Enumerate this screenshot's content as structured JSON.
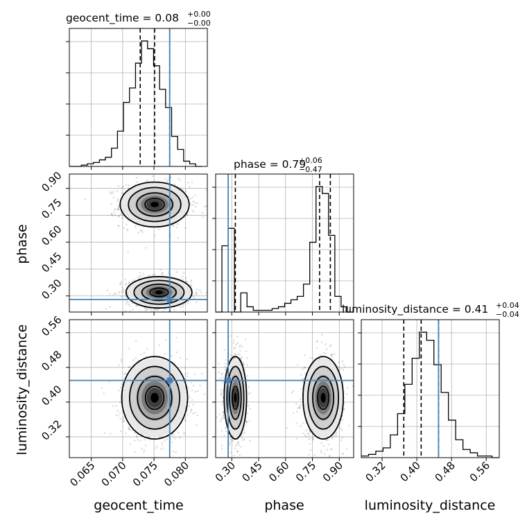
{
  "chart_data": {
    "type": "corner",
    "parameters": [
      "geocent_time",
      "phase",
      "luminosity_distance"
    ],
    "truths": {
      "geocent_time": 0.0775,
      "phase": 0.28,
      "luminosity_distance": 0.45
    },
    "colors": {
      "truth": "#4682b4",
      "hist": "#000000",
      "grid": "#b0b0b0"
    },
    "titles": [
      {
        "param": "geocent_time",
        "label": "geocent_time = 0.08",
        "sup": "+0.00",
        "sub": "−0.00"
      },
      {
        "param": "phase",
        "label": "phase = 0.79",
        "sup": "+0.06",
        "sub": "−0.47"
      },
      {
        "param": "luminosity_distance",
        "label": "luminosity_distance = 0.41",
        "sup": "+0.04",
        "sub": "−0.04"
      }
    ],
    "axes": {
      "geocent_time": {
        "range": [
          0.0615,
          0.0835
        ],
        "ticks": [
          "0.065",
          "0.070",
          "0.075",
          "0.080"
        ]
      },
      "phase": {
        "range": [
          0.21,
          0.98
        ],
        "ticks": [
          "0.30",
          "0.45",
          "0.60",
          "0.75",
          "0.90"
        ]
      },
      "luminosity_distance": {
        "range": [
          0.272,
          0.59
        ],
        "ticks": [
          "0.32",
          "0.40",
          "0.48",
          "0.56"
        ]
      }
    },
    "marginals": {
      "geocent_time": {
        "edges": [
          0.0615,
          0.0826
        ],
        "counts": [
          0,
          0,
          1,
          2,
          3,
          5,
          7,
          14,
          27,
          49,
          60,
          79,
          96,
          90,
          77,
          59,
          45,
          23,
          13,
          4,
          2,
          0
        ],
        "quantiles": [
          0.0728,
          0.0751,
          0.0775
        ]
      },
      "phase": {
        "edges": [
          0.21,
          0.98
        ],
        "counts": [
          0,
          38,
          48,
          0,
          11,
          3,
          1,
          1,
          1,
          2,
          3,
          5,
          7,
          9,
          16,
          40,
          72,
          68,
          44,
          9,
          3,
          0
        ],
        "quantiles": [
          0.32,
          0.79,
          0.85
        ]
      },
      "luminosity_distance": {
        "edges": [
          0.272,
          0.59
        ],
        "counts": [
          1,
          2,
          4,
          6,
          14,
          27,
          45,
          61,
          77,
          72,
          57,
          40,
          23,
          11,
          5,
          3,
          1,
          1,
          0
        ],
        "quantiles": [
          0.37,
          0.41,
          0.45
        ]
      }
    },
    "pairs": [
      {
        "x": "geocent_time",
        "y": "phase",
        "modes": [
          {
            "cx": 0.0751,
            "cy": 0.81,
            "sx": 0.0022,
            "sy": 0.05
          },
          {
            "cx": 0.0758,
            "cy": 0.32,
            "sx": 0.0021,
            "sy": 0.035
          }
        ]
      },
      {
        "x": "geocent_time",
        "y": "luminosity_distance",
        "modes": [
          {
            "cx": 0.0751,
            "cy": 0.41,
            "sx": 0.0021,
            "sy": 0.038
          }
        ]
      },
      {
        "x": "phase",
        "y": "luminosity_distance",
        "modes": [
          {
            "cx": 0.32,
            "cy": 0.41,
            "sx": 0.025,
            "sy": 0.038
          },
          {
            "cx": 0.81,
            "cy": 0.41,
            "sx": 0.045,
            "sy": 0.038
          }
        ]
      }
    ]
  }
}
